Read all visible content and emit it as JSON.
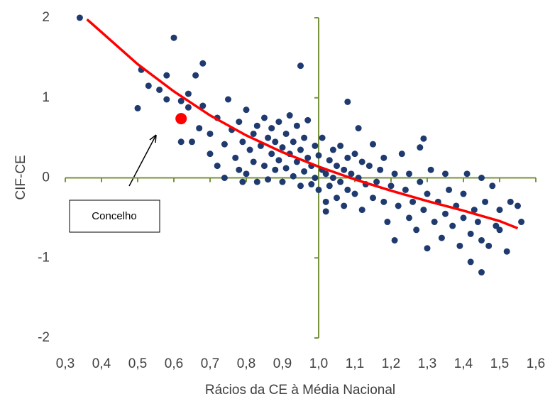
{
  "chart_data": {
    "type": "scatter",
    "x_label": "Rácios da CE à Média Nacional",
    "y_label": "CIF-CE",
    "annotation": "Concelho",
    "xlim": [
      0.3,
      1.6
    ],
    "ylim": [
      -2,
      2
    ],
    "xticks": [
      {
        "value": 0.3,
        "label": "0,3"
      },
      {
        "value": 0.4,
        "label": "0,4"
      },
      {
        "value": 0.5,
        "label": "0,5"
      },
      {
        "value": 0.6,
        "label": "0,6"
      },
      {
        "value": 0.7,
        "label": "0,7"
      },
      {
        "value": 0.8,
        "label": "0,8"
      },
      {
        "value": 0.9,
        "label": "0,9"
      },
      {
        "value": 1.0,
        "label": "1,0"
      },
      {
        "value": 1.1,
        "label": "1,1"
      },
      {
        "value": 1.2,
        "label": "1,2"
      },
      {
        "value": 1.3,
        "label": "1,3"
      },
      {
        "value": 1.4,
        "label": "1,4"
      },
      {
        "value": 1.5,
        "label": "1,5"
      },
      {
        "value": 1.6,
        "label": "1,6"
      }
    ],
    "yticks": [
      -2,
      -1,
      0,
      1,
      2
    ],
    "axis_color": "#77933c",
    "points": {
      "color": "#1f3a6e",
      "x": [
        0.34,
        0.6,
        0.51,
        0.53,
        0.5,
        0.58,
        0.66,
        0.68,
        0.95,
        1.08,
        1.45,
        1.42,
        1.52,
        1.29,
        1.56,
        0.62,
        0.64,
        0.58,
        0.65,
        0.67,
        0.68,
        0.7,
        0.7,
        0.72,
        0.72,
        0.74,
        0.75,
        0.76,
        0.77,
        0.78,
        0.78,
        0.79,
        0.8,
        0.8,
        0.81,
        0.82,
        0.82,
        0.83,
        0.83,
        0.84,
        0.85,
        0.85,
        0.86,
        0.86,
        0.87,
        0.87,
        0.88,
        0.88,
        0.89,
        0.89,
        0.9,
        0.9,
        0.91,
        0.91,
        0.92,
        0.92,
        0.93,
        0.93,
        0.94,
        0.94,
        0.95,
        0.95,
        0.96,
        0.96,
        0.97,
        0.97,
        0.98,
        0.98,
        0.99,
        0.99,
        1.0,
        1.0,
        1.01,
        1.01,
        1.02,
        1.02,
        1.03,
        1.03,
        1.04,
        1.04,
        1.05,
        1.05,
        1.06,
        1.06,
        1.07,
        1.07,
        1.08,
        1.08,
        1.09,
        1.1,
        1.1,
        1.11,
        1.12,
        1.12,
        1.13,
        1.14,
        1.15,
        1.15,
        1.16,
        1.17,
        1.18,
        1.18,
        1.19,
        1.2,
        1.21,
        1.21,
        1.22,
        1.23,
        1.24,
        1.25,
        1.25,
        1.26,
        1.27,
        1.28,
        1.28,
        1.29,
        1.3,
        1.3,
        1.31,
        1.32,
        1.33,
        1.34,
        1.35,
        1.35,
        1.36,
        1.37,
        1.38,
        1.39,
        1.4,
        1.4,
        1.41,
        1.42,
        1.43,
        1.44,
        1.45,
        1.45,
        1.46,
        1.47,
        1.48,
        1.49,
        1.5,
        1.53,
        1.55,
        1.5,
        0.62,
        0.64,
        0.56,
        0.74,
        0.79,
        1.02,
        1.11
      ],
      "values": [
        2.0,
        1.75,
        1.35,
        1.15,
        0.87,
        1.28,
        1.28,
        1.43,
        1.4,
        0.95,
        -1.18,
        -1.05,
        -0.92,
        0.49,
        -0.55,
        0.96,
        0.88,
        0.98,
        0.45,
        0.62,
        0.9,
        0.55,
        0.3,
        0.75,
        0.15,
        0.42,
        0.98,
        0.6,
        0.25,
        0.1,
        0.7,
        0.45,
        0.05,
        0.85,
        0.35,
        0.55,
        0.2,
        -0.05,
        0.65,
        0.4,
        0.75,
        0.15,
        0.5,
        -0.02,
        0.3,
        0.62,
        0.1,
        0.45,
        0.7,
        0.22,
        0.38,
        -0.05,
        0.55,
        0.12,
        0.3,
        0.78,
        0.02,
        0.45,
        0.2,
        0.65,
        0.35,
        -0.1,
        0.5,
        0.08,
        0.25,
        0.72,
        0.15,
        -0.08,
        0.4,
        0.0,
        0.28,
        -0.15,
        0.1,
        0.5,
        0.05,
        -0.3,
        0.22,
        -0.1,
        0.35,
        0.0,
        0.15,
        -0.25,
        0.4,
        -0.05,
        0.1,
        -0.35,
        0.25,
        -0.15,
        0.05,
        0.3,
        -0.2,
        0.0,
        0.2,
        -0.4,
        -0.08,
        0.15,
        -0.25,
        0.42,
        -0.05,
        0.1,
        -0.3,
        0.25,
        -0.55,
        -0.1,
        0.05,
        -0.78,
        -0.35,
        0.3,
        -0.15,
        -0.5,
        0.05,
        -0.3,
        -0.65,
        -0.05,
        0.38,
        -0.4,
        -0.2,
        -0.88,
        0.1,
        -0.55,
        -0.3,
        -0.75,
        0.05,
        -0.45,
        -0.15,
        -0.6,
        -0.35,
        -0.85,
        -0.2,
        -0.5,
        0.05,
        -0.7,
        -0.4,
        -0.55,
        0.0,
        -0.78,
        -0.3,
        -0.85,
        -0.1,
        -0.6,
        -0.4,
        -0.3,
        -0.35,
        -0.65,
        0.45,
        1.05,
        1.1,
        0.0,
        -0.05,
        -0.42,
        0.62
      ]
    },
    "highlight": {
      "color": "#ff0000",
      "x": [
        0.62
      ],
      "values": [
        0.74
      ]
    },
    "trend": {
      "color": "#ff0000",
      "x": [
        0.36,
        0.5,
        0.6,
        0.7,
        0.8,
        0.9,
        1.0,
        1.1,
        1.2,
        1.3,
        1.4,
        1.5,
        1.55
      ],
      "values": [
        1.98,
        1.42,
        1.08,
        0.78,
        0.53,
        0.32,
        0.14,
        -0.02,
        -0.16,
        -0.29,
        -0.41,
        -0.54,
        -0.63
      ]
    }
  }
}
